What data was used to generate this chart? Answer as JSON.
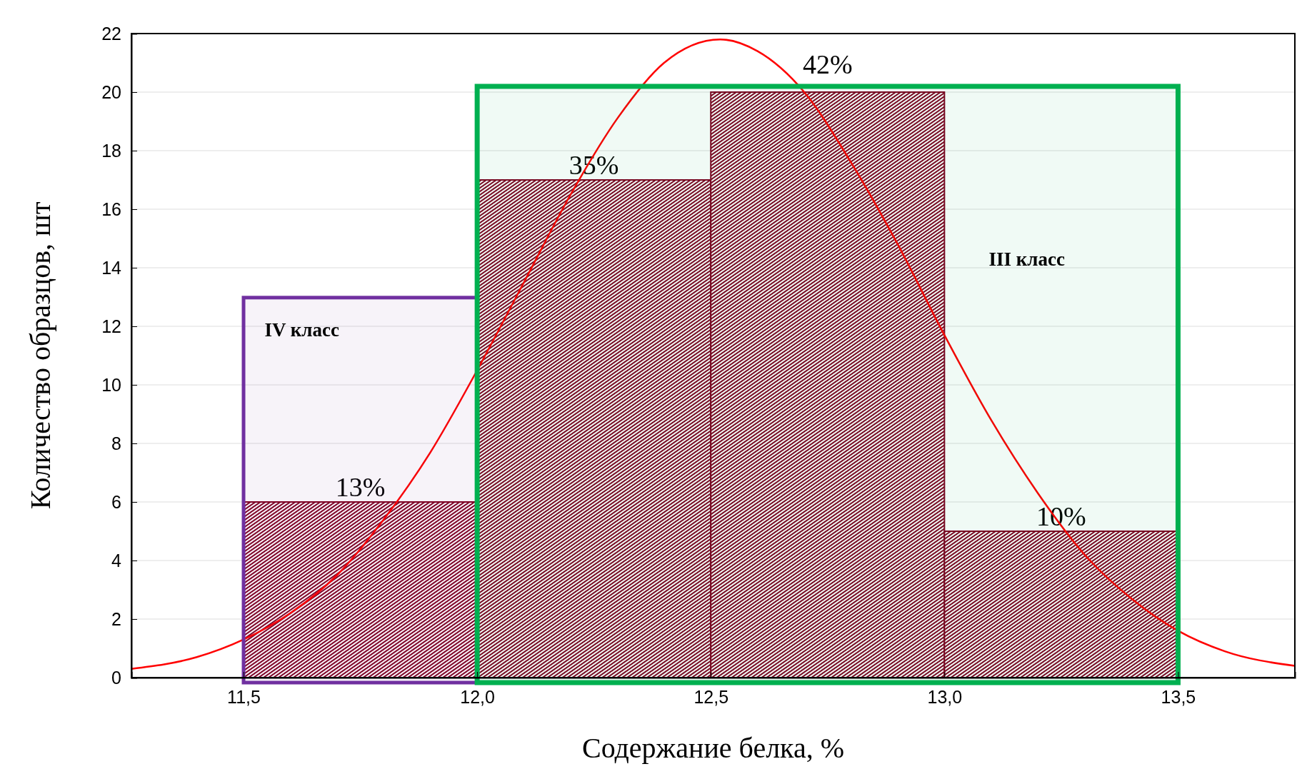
{
  "chart_data": {
    "type": "histogram",
    "xlabel": "Содержание белка, %",
    "ylabel": "Количество образцов, шт",
    "bins": [
      11.5,
      12.0,
      12.5,
      13.0,
      13.5
    ],
    "values": [
      6,
      17,
      20,
      5
    ],
    "color": "#800020",
    "annotations": [
      {
        "text": "13%",
        "x": 11.75,
        "y": 6
      },
      {
        "text": "35%",
        "x": 12.25,
        "y": 17
      },
      {
        "text": "42%",
        "x": 12.75,
        "y": 20
      },
      {
        "text": "10%",
        "x": 13.25,
        "y": 5
      }
    ],
    "series": [
      {
        "type": "line",
        "color": "#ff0000",
        "x": [
          11.26,
          11.4,
          11.5,
          11.6,
          11.7,
          11.8,
          11.9,
          12.0,
          12.1,
          12.2,
          12.3,
          12.4,
          12.52,
          12.6,
          12.7,
          12.8,
          12.9,
          13.0,
          13.1,
          13.2,
          13.3,
          13.4,
          13.5,
          13.6,
          13.75
        ],
        "values": [
          0.3,
          0.7,
          1.3,
          2.2,
          3.5,
          5.4,
          7.7,
          10.5,
          13.5,
          16.5,
          19.1,
          21.0,
          21.8,
          21.4,
          20.0,
          17.6,
          14.8,
          11.7,
          8.8,
          6.3,
          4.2,
          2.7,
          1.6,
          0.9,
          0.4
        ]
      }
    ],
    "bands": [
      {
        "axis": "x",
        "from": 11.5,
        "to": 12.0,
        "label": "IV класс",
        "color": "#7030a0"
      },
      {
        "axis": "x",
        "from": 12.0,
        "to": 13.5,
        "label": "III класс",
        "color": "#00b050"
      }
    ],
    "xlim": [
      11.26,
      13.75
    ],
    "ylim": [
      0,
      22
    ],
    "xticks": [
      {
        "value": 11.5,
        "label": "11,5"
      },
      {
        "value": 12.0,
        "label": "12,0"
      },
      {
        "value": 12.5,
        "label": "12,5"
      },
      {
        "value": 13.0,
        "label": "13,0"
      },
      {
        "value": 13.5,
        "label": "13,5"
      }
    ],
    "yticks": [
      0,
      2,
      4,
      6,
      8,
      10,
      12,
      14,
      16,
      18,
      20,
      22
    ],
    "grid": "y"
  }
}
